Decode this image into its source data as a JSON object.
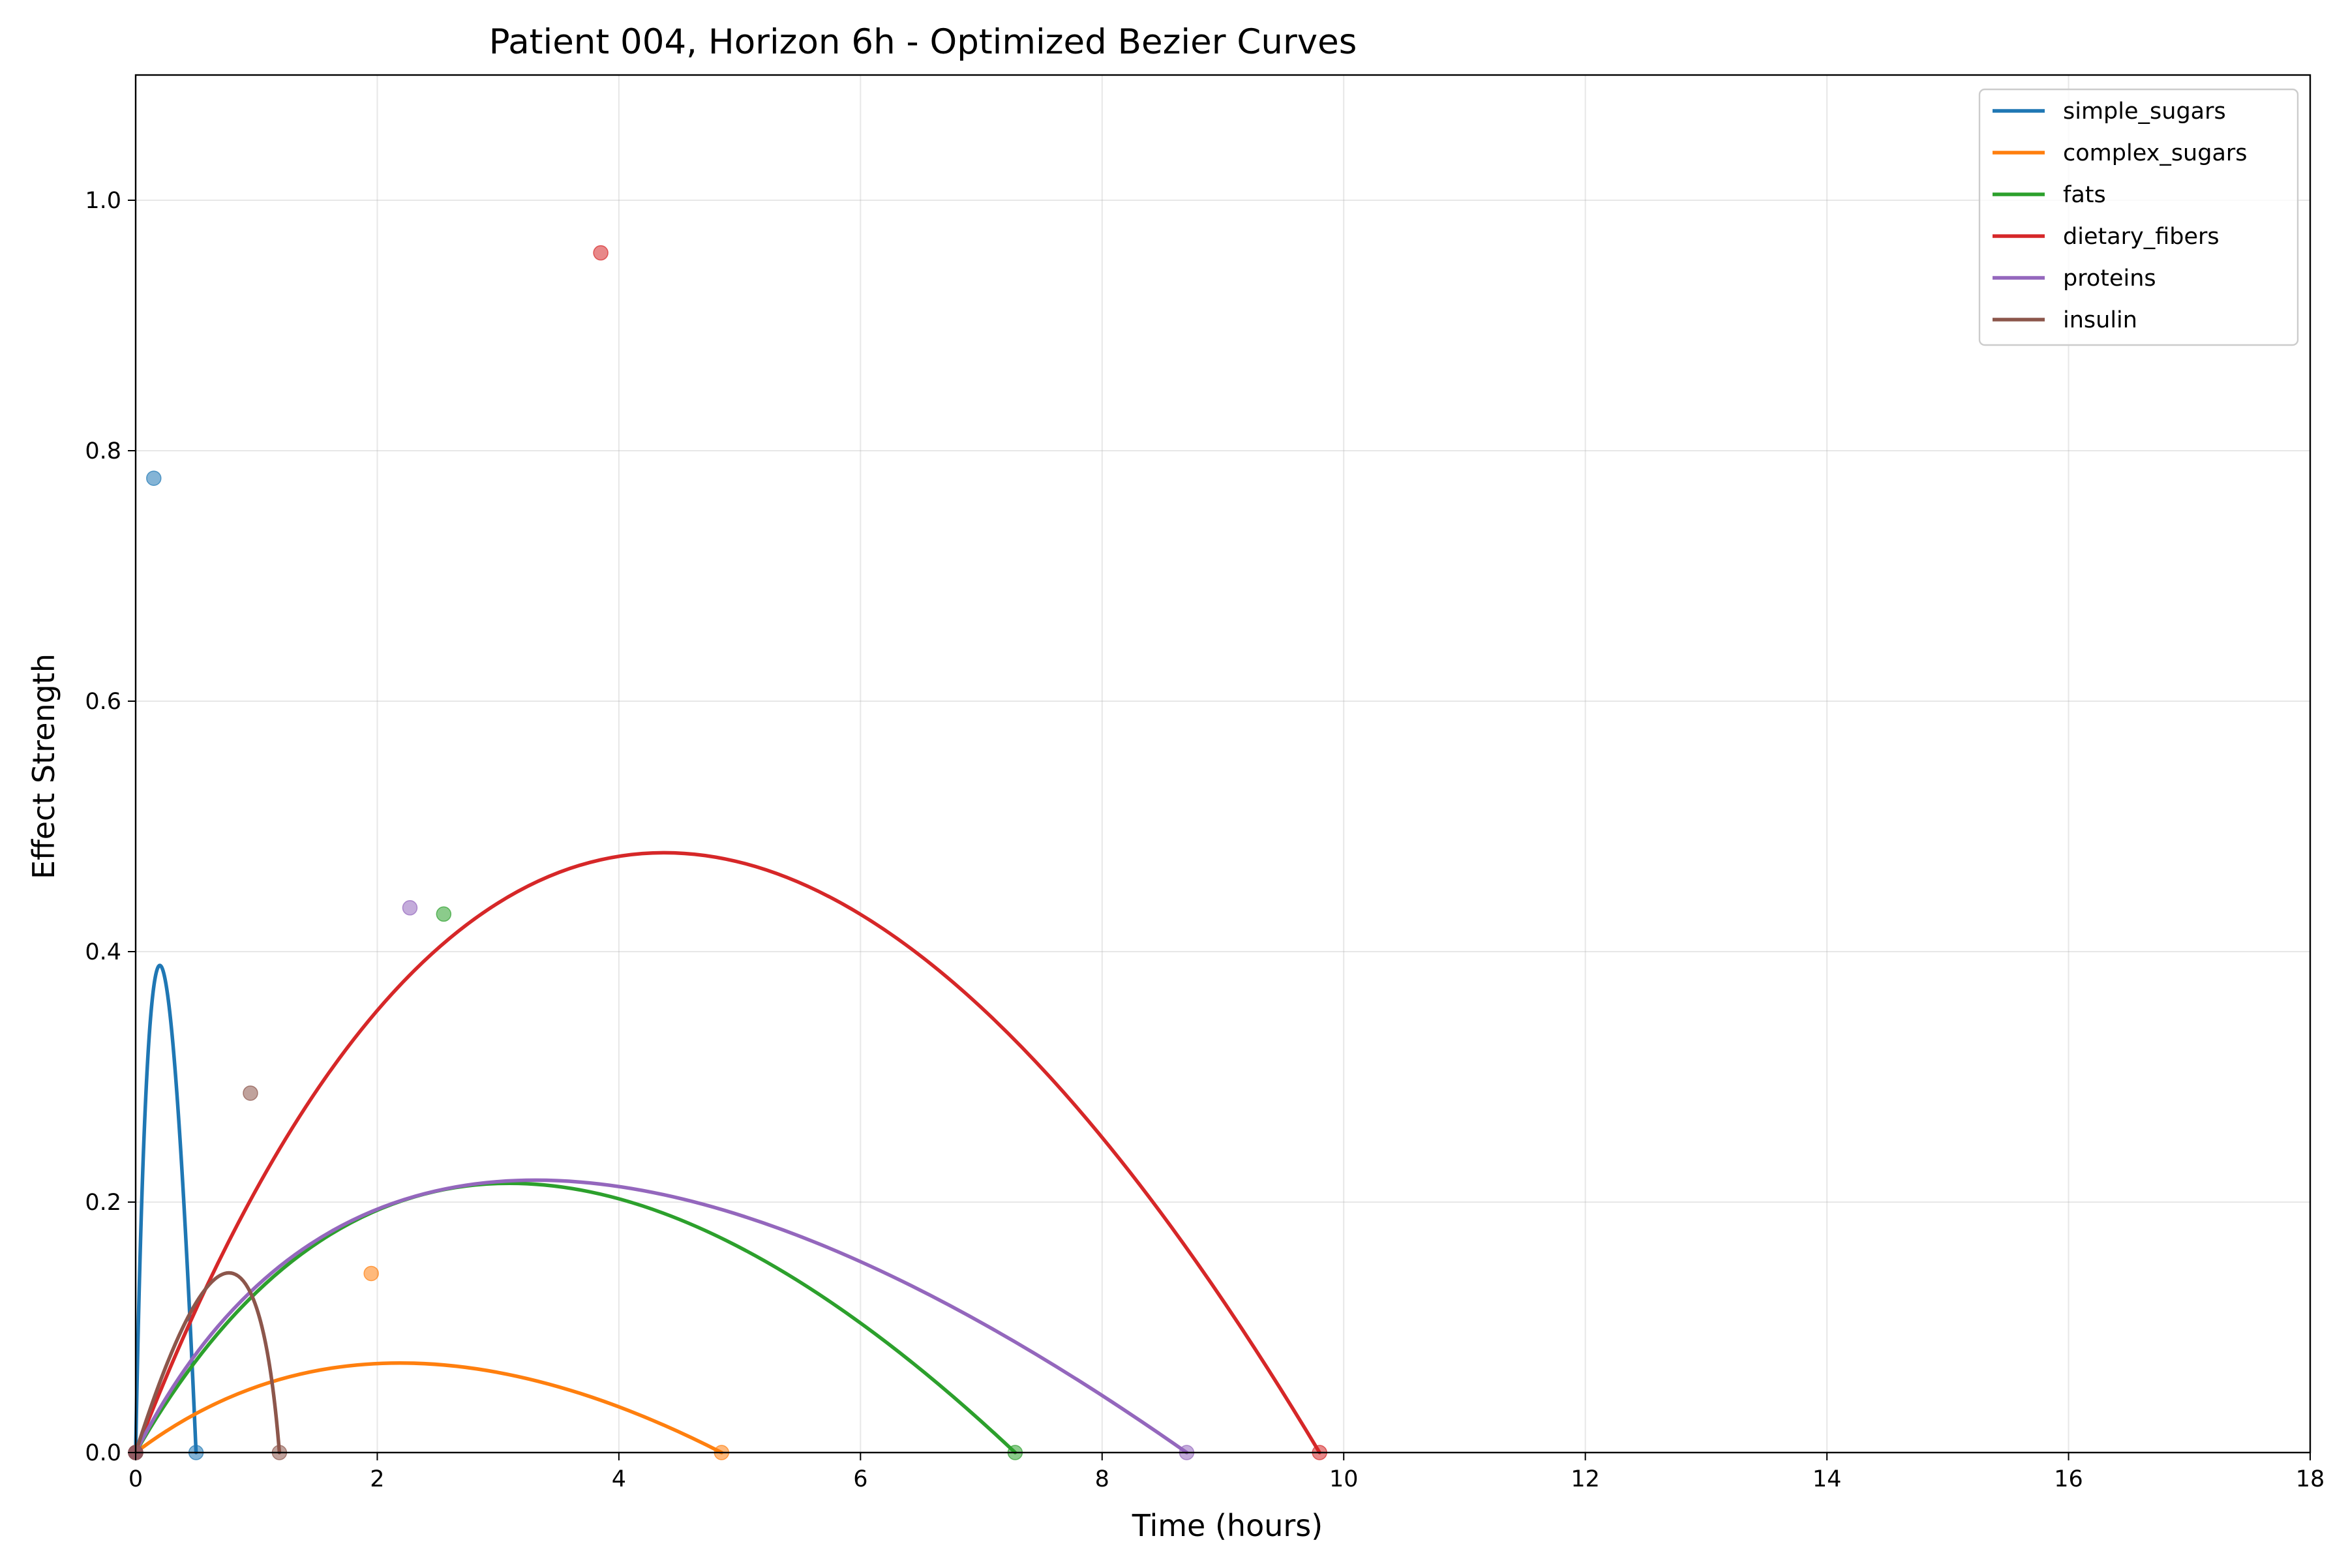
{
  "chart_data": {
    "type": "line",
    "title": "Patient 004, Horizon 6h - Optimized Bezier Curves",
    "xlabel": "Time (hours)",
    "ylabel": "Effect Strength",
    "xlim": [
      0,
      18
    ],
    "ylim": [
      0,
      1.1
    ],
    "x_ticks": [
      0,
      2,
      4,
      6,
      8,
      10,
      12,
      14,
      16,
      18
    ],
    "x_tick_labels": [
      "0",
      "2",
      "4",
      "6",
      "8",
      "10",
      "12",
      "14",
      "16",
      "18"
    ],
    "y_ticks": [
      0.0,
      0.2,
      0.4,
      0.6,
      0.8,
      1.0
    ],
    "y_tick_labels": [
      "0.0",
      "0.2",
      "0.4",
      "0.6",
      "0.8",
      "1.0"
    ],
    "grid": true,
    "legend_position": "top-right",
    "series": [
      {
        "name": "simple_sugars",
        "color": "#1f77b4",
        "start": [
          0,
          0
        ],
        "control": [
          0.15,
          0.778
        ],
        "end": [
          0.5,
          0
        ]
      },
      {
        "name": "complex_sugars",
        "color": "#ff7f0e",
        "start": [
          0,
          0
        ],
        "control": [
          1.95,
          0.143
        ],
        "end": [
          4.85,
          0
        ]
      },
      {
        "name": "fats",
        "color": "#2ca02c",
        "start": [
          0,
          0
        ],
        "control": [
          2.55,
          0.43
        ],
        "end": [
          7.28,
          0
        ]
      },
      {
        "name": "dietary_fibers",
        "color": "#d62728",
        "start": [
          0,
          0
        ],
        "control": [
          3.85,
          0.958
        ],
        "end": [
          9.8,
          0
        ]
      },
      {
        "name": "proteins",
        "color": "#9467bd",
        "start": [
          0,
          0
        ],
        "control": [
          2.27,
          0.435
        ],
        "end": [
          8.7,
          0
        ]
      },
      {
        "name": "insulin",
        "color": "#8c564b",
        "start": [
          0,
          0
        ],
        "control": [
          0.95,
          0.287
        ],
        "end": [
          1.19,
          0
        ]
      }
    ]
  }
}
